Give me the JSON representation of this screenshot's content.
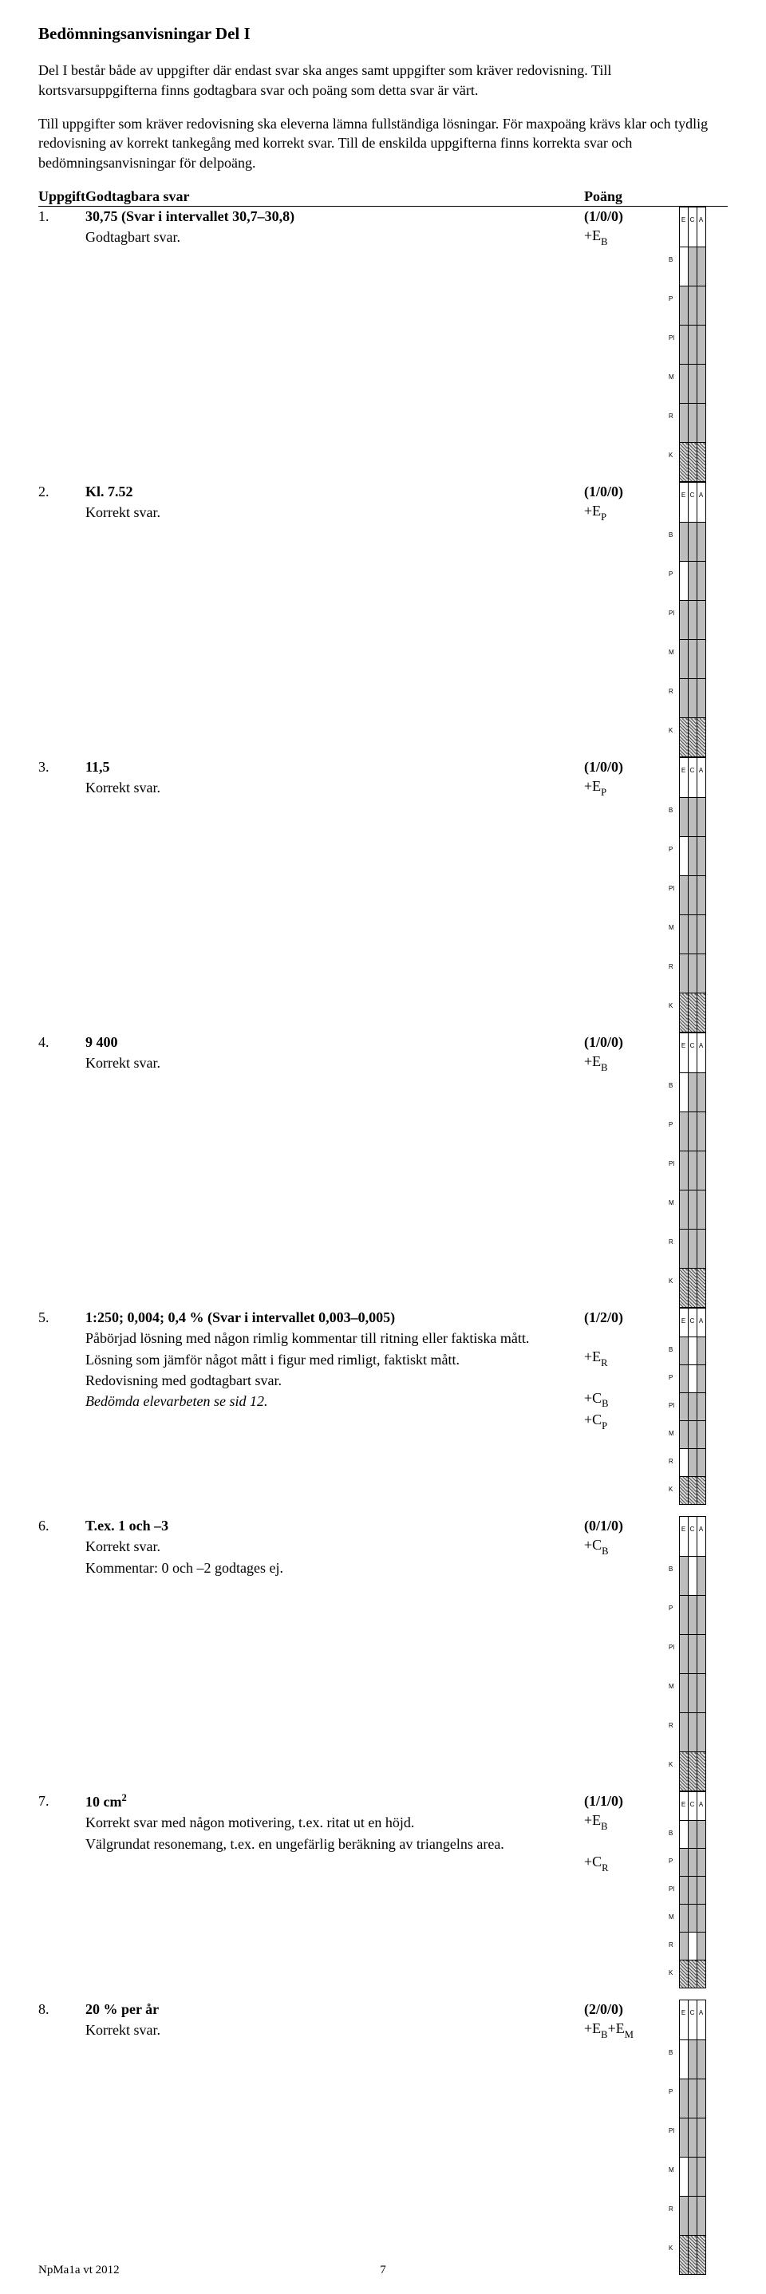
{
  "heading": "Bedömningsanvisningar Del I",
  "intro": [
    "Del I består både av uppgifter där endast svar ska anges samt uppgifter som kräver redovisning. Till kortsvarsuppgifterna finns godtagbara svar och poäng som detta svar är värt.",
    "Till uppgifter som kräver redovisning ska eleverna lämna fullständiga lösningar. För maxpoäng krävs klar och tydlig redovisning av korrekt tankegång med korrekt svar. Till de enskilda uppgifterna finns korrekta svar och bedömningsanvisningar för delpoäng."
  ],
  "table_head": {
    "col1": "Uppgift",
    "col2": "Godtagbara svar",
    "col3": "Poäng"
  },
  "grid_cols": [
    "E",
    "C",
    "A"
  ],
  "grid_rows": [
    "B",
    "P",
    "Pl",
    "M",
    "R",
    "K"
  ],
  "rows": [
    {
      "num": "1.",
      "title_bold": "30,75 (Svar i intervallet 30,7–30,8)",
      "lines": [
        {
          "text": "Godtagbart svar."
        }
      ],
      "pts": [
        "(1/0/0)",
        "+E_B"
      ],
      "fill": [
        [
          0,
          0
        ]
      ]
    },
    {
      "num": "2.",
      "title_bold": "Kl. 7.52",
      "lines": [
        {
          "text": "Korrekt svar."
        }
      ],
      "pts": [
        "(1/0/0)",
        "+E_P"
      ],
      "fill": [
        [
          1,
          0
        ]
      ]
    },
    {
      "num": "3.",
      "title_bold": "11,5",
      "lines": [
        {
          "text": "Korrekt svar."
        }
      ],
      "pts": [
        "(1/0/0)",
        "+E_P"
      ],
      "fill": [
        [
          1,
          0
        ]
      ]
    },
    {
      "num": "4.",
      "title_bold": "9 400",
      "lines": [
        {
          "text": "Korrekt svar."
        }
      ],
      "pts": [
        "(1/0/0)",
        "+E_B"
      ],
      "fill": [
        [
          0,
          0
        ]
      ]
    },
    {
      "num": "5.",
      "title_bold": "1:250; 0,004; 0,4 % (Svar i intervallet 0,003–0,005)",
      "lines": [
        {
          "text": "Påbörjad lösning med någon rimlig kommentar till ritning eller faktiska mått."
        },
        {
          "text": "Lösning som jämför något mått i figur med rimligt, faktiskt mått."
        },
        {
          "text": "Redovisning med godtagbart svar."
        },
        {
          "text": "Bedömda elevarbeten se sid 12.",
          "italic": true
        }
      ],
      "pts": [
        "(1/2/0)",
        "",
        "+E_R",
        "",
        "+C_B",
        "+C_P"
      ],
      "fill": [
        [
          0,
          1
        ],
        [
          1,
          1
        ],
        [
          4,
          0
        ]
      ],
      "tight": true
    },
    {
      "num": "6.",
      "title_bold": "T.ex. 1 och –3",
      "lines": [
        {
          "text": "Korrekt svar."
        },
        {
          "text": "Kommentar: 0 och –2 godtages ej."
        }
      ],
      "pts": [
        "(0/1/0)",
        "+C_B"
      ],
      "fill": [
        [
          0,
          1
        ]
      ]
    },
    {
      "num": "7.",
      "title_bold": "10 cm^2",
      "lines": [
        {
          "text": "Korrekt svar med någon motivering, t.ex. ritat ut en höjd."
        },
        {
          "text": "Välgrundat resonemang, t.ex. en ungefärlig beräkning av triangelns area."
        }
      ],
      "pts": [
        "(1/1/0)",
        "+E_B",
        "",
        "+C_R"
      ],
      "fill": [
        [
          0,
          0
        ],
        [
          4,
          1
        ]
      ],
      "tight": true
    },
    {
      "num": "8.",
      "title_bold": "20 % per år",
      "lines": [
        {
          "text": "Korrekt svar."
        }
      ],
      "pts": [
        "(2/0/0)",
        "+E_B+E_M"
      ],
      "fill": [
        [
          0,
          0
        ],
        [
          3,
          0
        ]
      ]
    }
  ],
  "footer_left": "NpMa1a vt 2012",
  "footer_page": "7"
}
